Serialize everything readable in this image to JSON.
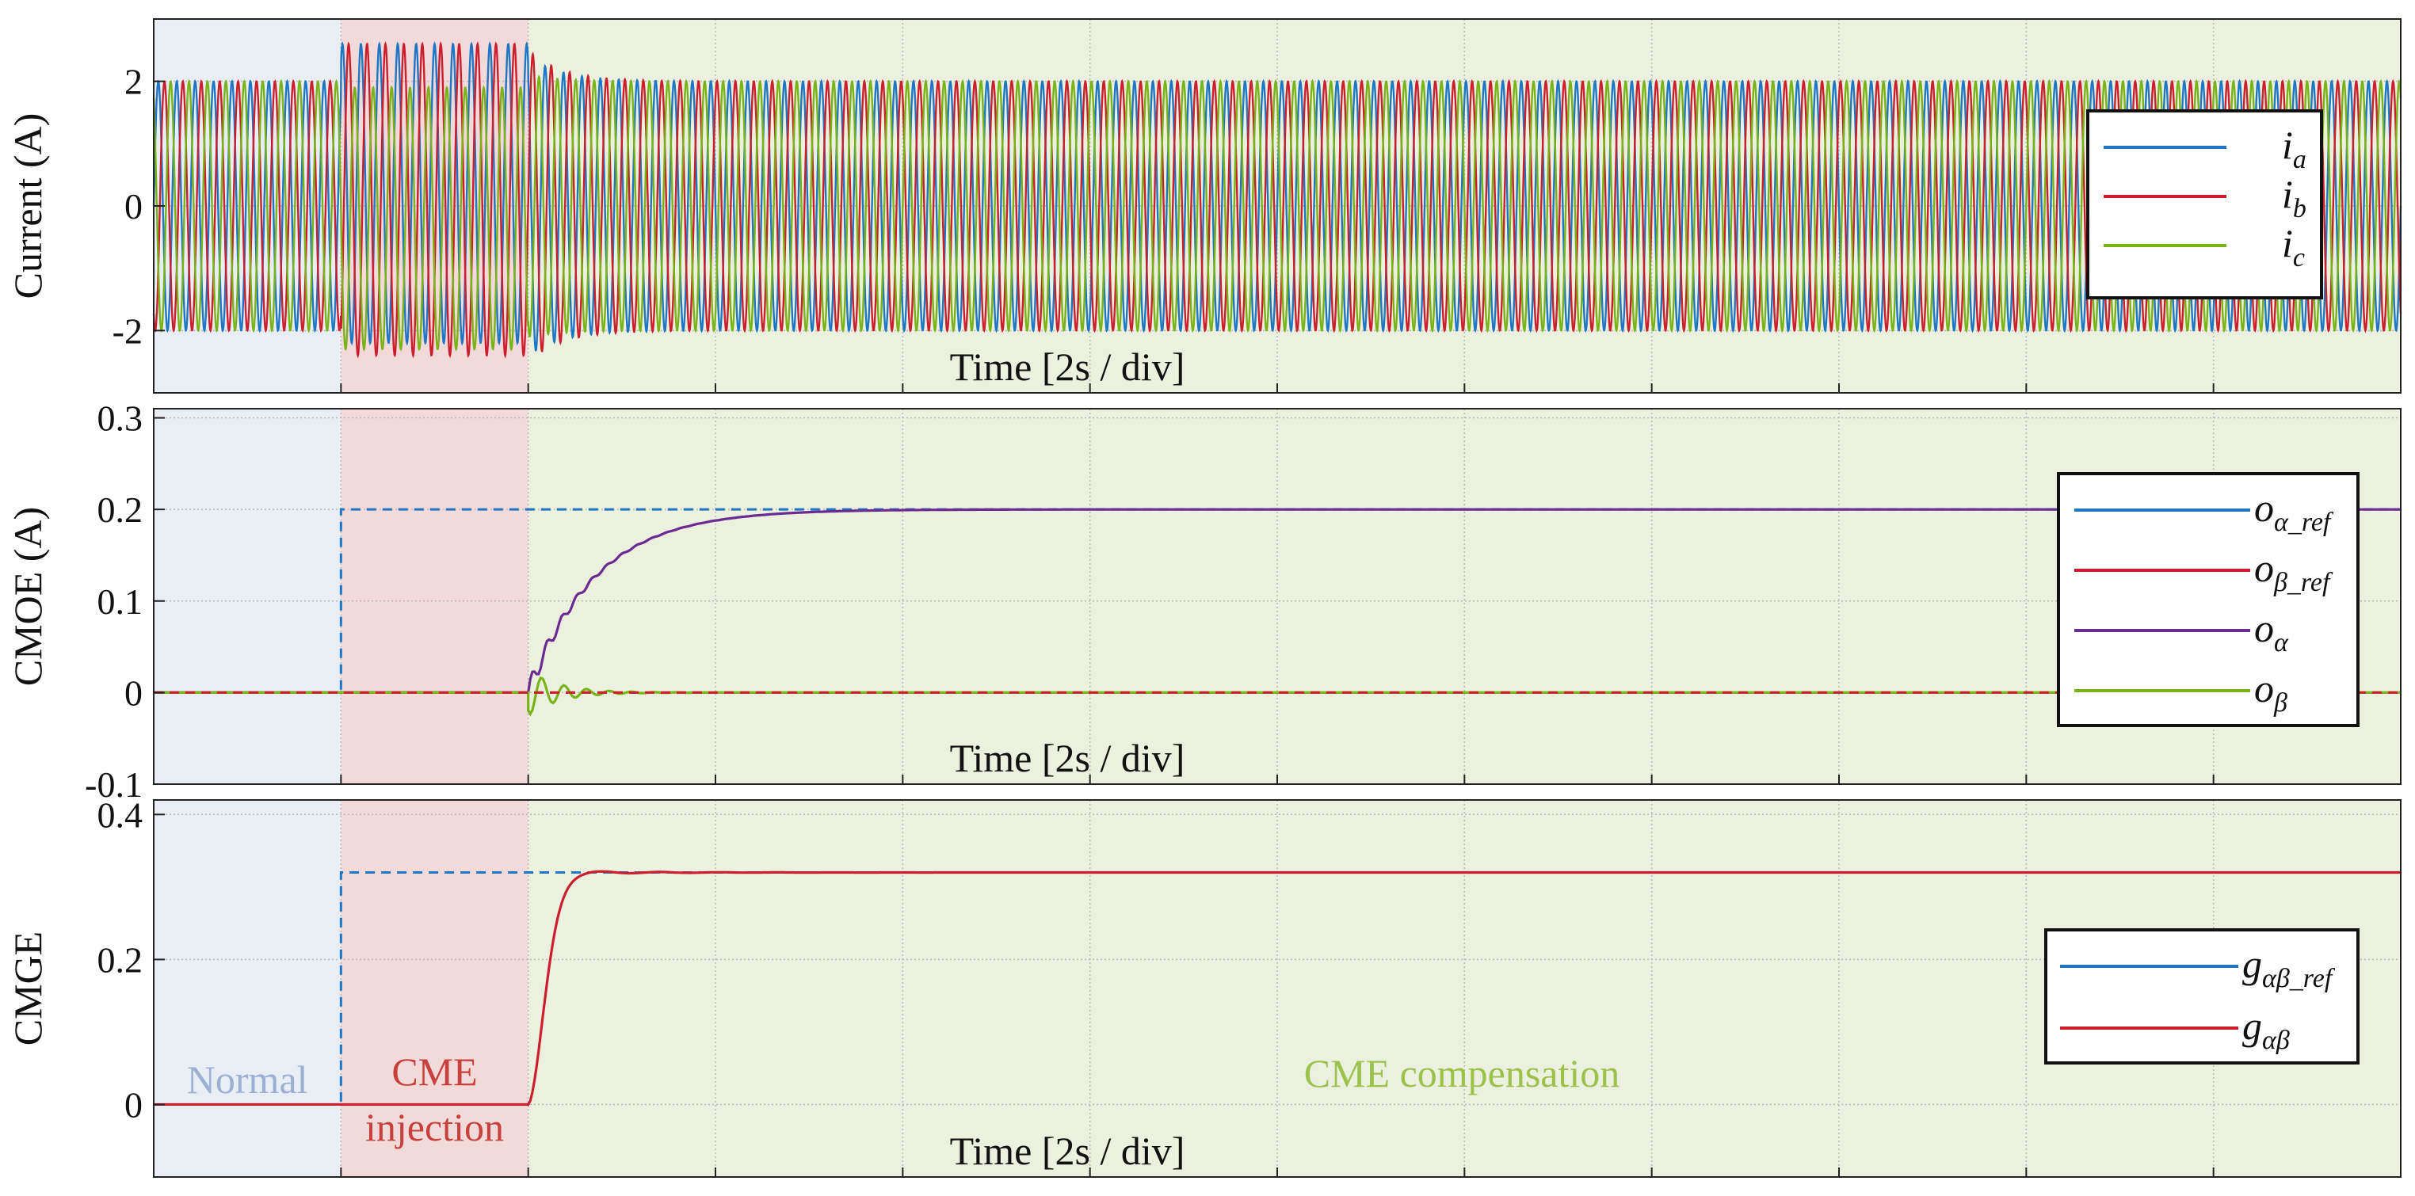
{
  "colors": {
    "blue": "#1f77c4",
    "red": "#cc1f2e",
    "purple": "#6a2c91",
    "green": "#7ab317",
    "normal_bg": "#e9edf4",
    "injection_bg": "#f2dada",
    "compensation_bg": "#ebf0df",
    "normal_text": "#9db0d4",
    "injection_text": "#c6413b",
    "compensation_text": "#9cc24b"
  },
  "regions": {
    "normal": "Normal",
    "injection_line1": "CME",
    "injection_line2": "injection",
    "compensation": "CME compensation",
    "time_divisions": 12,
    "normal_end_div": 1,
    "injection_end_div": 2
  },
  "chart_data": [
    {
      "type": "line",
      "ylabel": "Current (A)",
      "xlabel": "Time [2s / div]",
      "ylim": [
        -3,
        3
      ],
      "yticks": [
        "2",
        "0",
        "-2"
      ],
      "ytick_values": [
        2,
        0,
        -2
      ],
      "x_range_div": [
        0,
        12
      ],
      "grid": true,
      "legend_position": "right",
      "series": [
        {
          "name": "ia",
          "label_main": "i",
          "label_sub": "a",
          "color": "blue",
          "amplitude_normal": 2.0,
          "amplitude_injection": 2.4,
          "amplitude_compensation": 2.0
        },
        {
          "name": "ib",
          "label_main": "i",
          "label_sub": "b",
          "color": "red",
          "amplitude_normal": 2.0,
          "amplitude_injection": 2.5,
          "amplitude_compensation": 2.0
        },
        {
          "name": "ic",
          "label_main": "i",
          "label_sub": "c",
          "color": "green",
          "amplitude_normal": 2.0,
          "amplitude_injection": 2.1,
          "amplitude_compensation": 2.0
        }
      ]
    },
    {
      "type": "line",
      "ylabel": "CMOE (A)",
      "xlabel": "Time [2s / div]",
      "ylim": [
        -0.1,
        0.31
      ],
      "yticks": [
        "0.3",
        "0.2",
        "0.1",
        "0",
        "-0.1"
      ],
      "ytick_values": [
        0.3,
        0.2,
        0.1,
        0,
        -0.1
      ],
      "x_range_div": [
        0,
        12
      ],
      "grid": true,
      "legend_position": "right",
      "series": [
        {
          "name": "oα_ref",
          "label_main": "o",
          "label_sub": "α_ref",
          "color": "blue",
          "dashed": true,
          "steps": [
            [
              0,
              0
            ],
            [
              1,
              0.2
            ],
            [
              12,
              0.2
            ]
          ]
        },
        {
          "name": "oβ_ref",
          "label_main": "o",
          "label_sub": "β_ref",
          "color": "red",
          "dashed": true,
          "steps": [
            [
              0,
              0
            ],
            [
              12,
              0
            ]
          ]
        },
        {
          "name": "oα",
          "label_main": "o",
          "label_sub": "α",
          "color": "purple",
          "start_div": 2,
          "final_value": 0.2,
          "settle_div": 1.5
        },
        {
          "name": "oβ",
          "label_main": "o",
          "label_sub": "β",
          "color": "green",
          "start_div": 2,
          "final_value": 0,
          "min_value": -0.025,
          "settle_div": 0.5
        }
      ]
    },
    {
      "type": "line",
      "ylabel": "CMGE",
      "xlabel": "Time [2s / div]",
      "ylim": [
        -0.1,
        0.42
      ],
      "yticks": [
        "0.4",
        "0.2",
        "0"
      ],
      "ytick_values": [
        0.4,
        0.2,
        0
      ],
      "x_range_div": [
        0,
        12
      ],
      "grid": true,
      "legend_position": "right",
      "series": [
        {
          "name": "gαβ_ref",
          "label_main": "g",
          "label_sub": "αβ_ref",
          "color": "blue",
          "dashed": true,
          "steps": [
            [
              0,
              0
            ],
            [
              1,
              0.32
            ],
            [
              12,
              0.32
            ]
          ]
        },
        {
          "name": "gαβ",
          "label_main": "g",
          "label_sub": "αβ",
          "color": "red",
          "start_div": 2,
          "final_value": 0.32,
          "settle_div": 0.6
        }
      ]
    }
  ]
}
